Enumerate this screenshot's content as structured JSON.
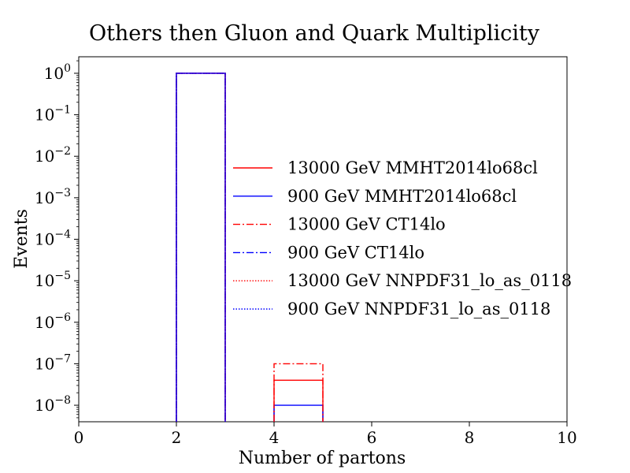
{
  "chart_data": {
    "type": "histogram",
    "title": "Others then Gluon and Quark Multiplicity",
    "xlabel": "Number of partons",
    "ylabel": "Events",
    "xlim": [
      0,
      10
    ],
    "ylim": [
      4e-09,
      2.5
    ],
    "y_scale": "log",
    "x_ticks": [
      0,
      2,
      4,
      6,
      8,
      10
    ],
    "y_ticks": [
      {
        "exp": "0",
        "value": 1
      },
      {
        "exp": "−1",
        "value": 0.1
      },
      {
        "exp": "−2",
        "value": 0.01
      },
      {
        "exp": "−3",
        "value": 0.001
      },
      {
        "exp": "−4",
        "value": 0.0001
      },
      {
        "exp": "−5",
        "value": 1e-05
      },
      {
        "exp": "−6",
        "value": 1e-06
      },
      {
        "exp": "−7",
        "value": 1e-07
      },
      {
        "exp": "−8",
        "value": 1e-08
      }
    ],
    "y_tick_base": "10",
    "grid": false,
    "legend_position": "center-right",
    "series": [
      {
        "name": "13000 GeV MMHT2014lo68cl",
        "color": "#ff0000",
        "linestyle": "solid",
        "bins": [
          {
            "x0": 2,
            "x1": 3,
            "value": 1.0
          },
          {
            "x0": 4,
            "x1": 5,
            "value": 4e-08
          }
        ]
      },
      {
        "name": "900 GeV MMHT2014lo68cl",
        "color": "#0000ff",
        "linestyle": "solid",
        "bins": [
          {
            "x0": 2,
            "x1": 3,
            "value": 1.0
          },
          {
            "x0": 4,
            "x1": 5,
            "value": 1e-08
          }
        ]
      },
      {
        "name": "13000 GeV CT14lo",
        "color": "#ff0000",
        "linestyle": "dashdot",
        "bins": [
          {
            "x0": 2,
            "x1": 3,
            "value": 1.0
          },
          {
            "x0": 4,
            "x1": 5,
            "value": 1e-07
          }
        ]
      },
      {
        "name": "900 GeV CT14lo",
        "color": "#0000ff",
        "linestyle": "dashdot",
        "bins": [
          {
            "x0": 2,
            "x1": 3,
            "value": 1.0
          }
        ]
      },
      {
        "name": "13000 GeV NNPDF31_lo_as_0118",
        "color": "#ff0000",
        "linestyle": "dotted",
        "bins": [
          {
            "x0": 2,
            "x1": 3,
            "value": 1.0
          }
        ]
      },
      {
        "name": "900 GeV NNPDF31_lo_as_0118",
        "color": "#0000ff",
        "linestyle": "dotted",
        "bins": [
          {
            "x0": 2,
            "x1": 3,
            "value": 1.0
          }
        ]
      }
    ]
  }
}
